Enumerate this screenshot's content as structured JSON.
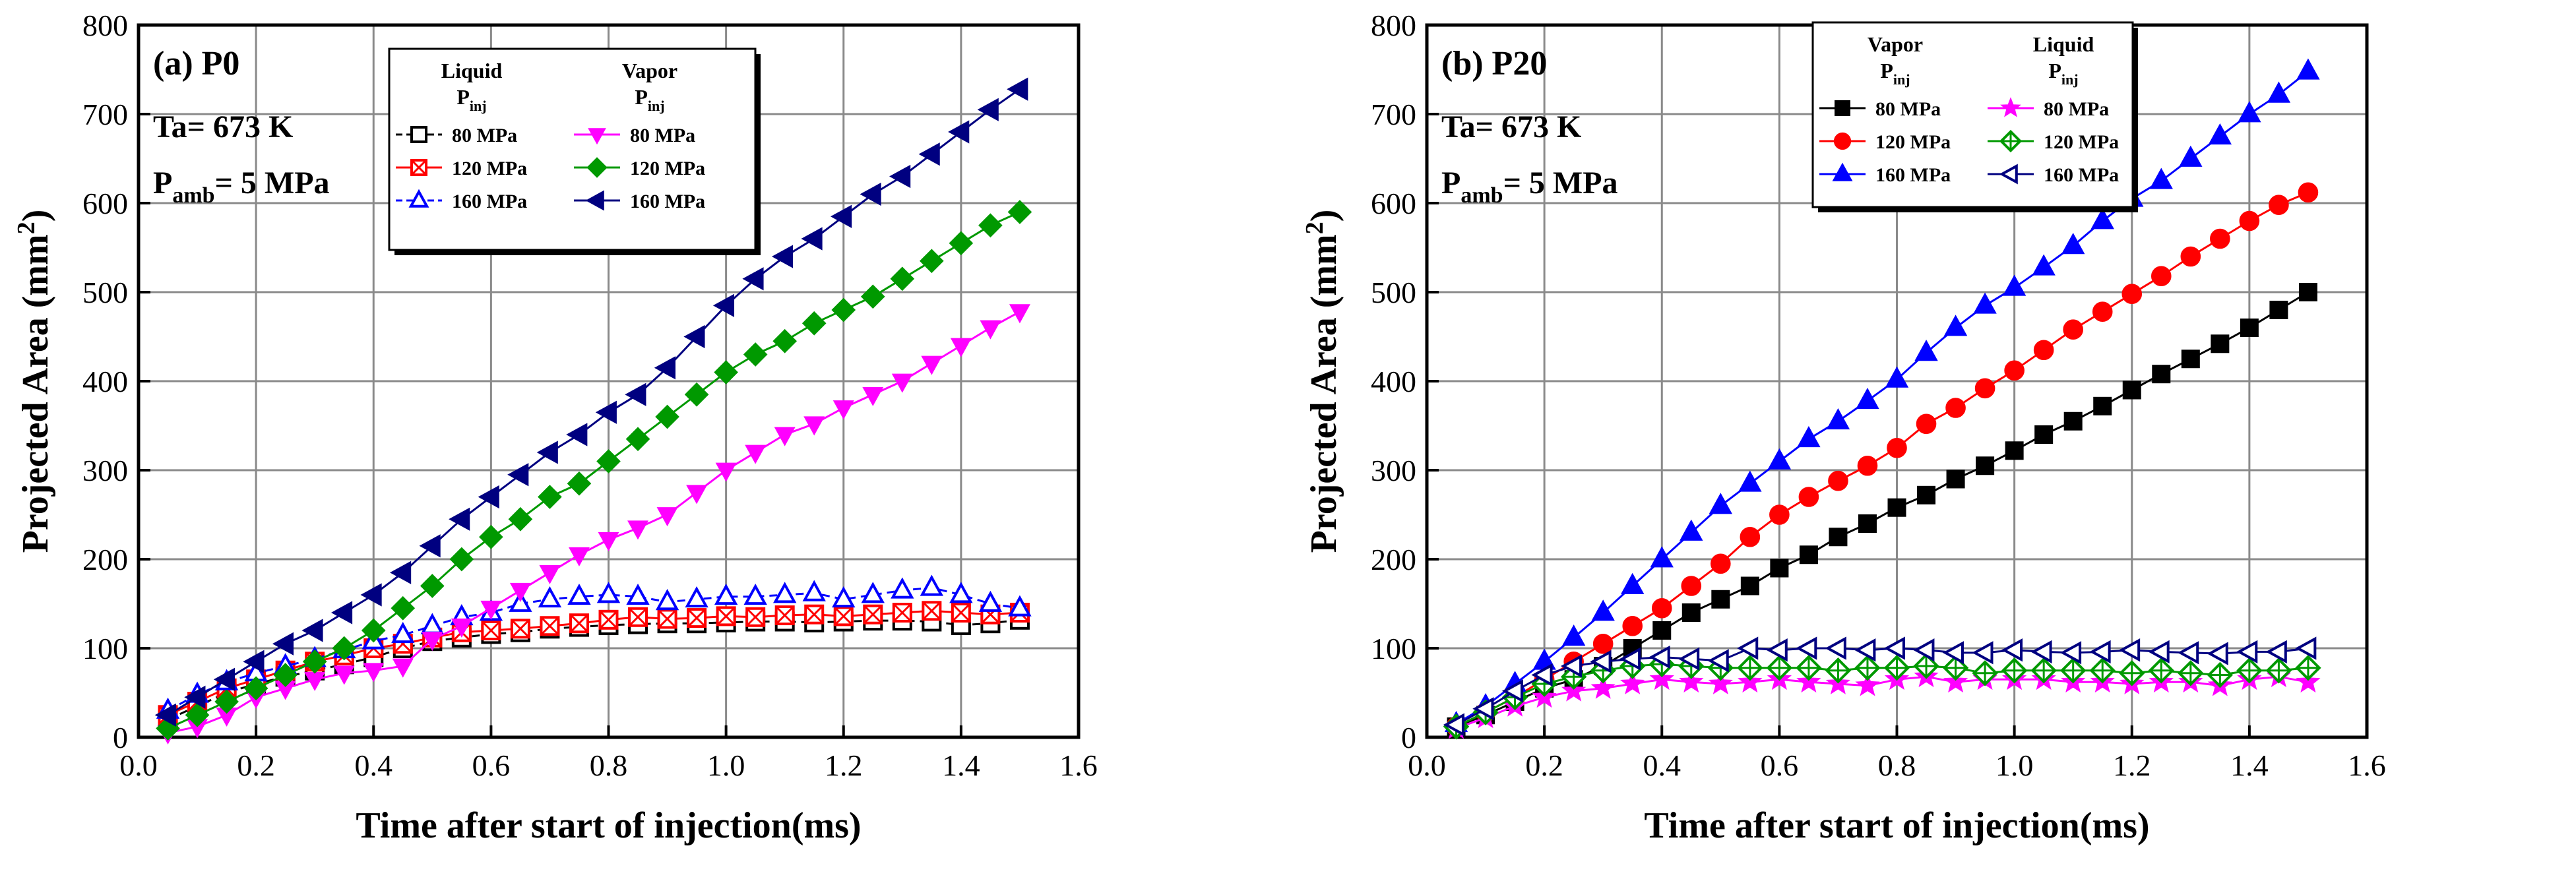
{
  "chart_data": [
    {
      "type": "line",
      "title": "(a) P0",
      "annotations": {
        "temperature": "Ta= 673 K",
        "pressure_main": "P",
        "pressure_sub": "amb",
        "pressure_rest": "= 5 MPa"
      },
      "xlabel": "Time after start of injection(ms)",
      "ylabel_main": "Projected Area (mm",
      "ylabel_sup": "2",
      "ylabel_end": ")",
      "xlim": [
        0.0,
        1.6
      ],
      "ylim": [
        0,
        800
      ],
      "xticks": [
        "0.0",
        "0.2",
        "0.4",
        "0.6",
        "0.8",
        "1.0",
        "1.2",
        "1.4",
        "1.6"
      ],
      "yticks": [
        "0",
        "100",
        "200",
        "300",
        "400",
        "500",
        "600",
        "700",
        "800"
      ],
      "grid": true,
      "legend_position": "top-center",
      "legend_groups": [
        {
          "header": "Liquid",
          "subheader_main": "P",
          "subheader_sub": "inj"
        },
        {
          "header": "Vapor",
          "subheader_main": "P",
          "subheader_sub": "inj"
        }
      ],
      "x": [
        0.05,
        0.1,
        0.15,
        0.2,
        0.25,
        0.3,
        0.35,
        0.4,
        0.45,
        0.5,
        0.55,
        0.6,
        0.65,
        0.7,
        0.75,
        0.8,
        0.85,
        0.9,
        0.95,
        1.0,
        1.05,
        1.1,
        1.15,
        1.2,
        1.25,
        1.3,
        1.35,
        1.4,
        1.45,
        1.5
      ],
      "series": [
        {
          "name": "80 MPa",
          "group": "Liquid",
          "color": "#000000",
          "marker": "square-open",
          "dashed": true,
          "values": [
            20,
            35,
            50,
            60,
            68,
            75,
            82,
            90,
            100,
            108,
            112,
            116,
            118,
            122,
            124,
            126,
            127,
            128,
            128,
            129,
            130,
            130,
            129,
            130,
            131,
            131,
            130,
            126,
            128,
            132
          ]
        },
        {
          "name": "120 MPa",
          "group": "Liquid",
          "color": "#ff0000",
          "marker": "square-x",
          "dashed": false,
          "values": [
            25,
            40,
            55,
            65,
            75,
            85,
            92,
            100,
            105,
            112,
            118,
            120,
            122,
            125,
            128,
            132,
            135,
            133,
            134,
            136,
            135,
            137,
            138,
            136,
            138,
            140,
            142,
            140,
            138,
            140
          ]
        },
        {
          "name": "160 MPa",
          "group": "Liquid",
          "color": "#0000ff",
          "marker": "triangle-up-open",
          "dashed": true,
          "values": [
            30,
            48,
            62,
            72,
            80,
            88,
            98,
            108,
            115,
            125,
            135,
            140,
            150,
            155,
            158,
            160,
            158,
            152,
            155,
            158,
            158,
            160,
            162,
            155,
            160,
            165,
            168,
            160,
            150,
            145
          ]
        },
        {
          "name": "80 MPa",
          "group": "Vapor",
          "color": "#ff00ff",
          "marker": "triangle-down-filled",
          "dashed": false,
          "values": [
            5,
            12,
            25,
            45,
            55,
            65,
            72,
            75,
            80,
            110,
            125,
            145,
            165,
            185,
            205,
            222,
            235,
            250,
            275,
            300,
            320,
            340,
            352,
            370,
            385,
            400,
            420,
            440,
            460,
            478
          ]
        },
        {
          "name": "120 MPa",
          "group": "Vapor",
          "color": "#009900",
          "marker": "diamond-filled",
          "dashed": false,
          "values": [
            10,
            25,
            40,
            55,
            70,
            85,
            100,
            120,
            145,
            170,
            200,
            225,
            245,
            270,
            285,
            310,
            335,
            360,
            385,
            410,
            430,
            445,
            465,
            480,
            495,
            515,
            535,
            555,
            575,
            590
          ]
        },
        {
          "name": "160 MPa",
          "group": "Vapor",
          "color": "#000080",
          "marker": "triangle-left-filled",
          "dashed": false,
          "values": [
            25,
            45,
            65,
            85,
            105,
            120,
            140,
            160,
            185,
            215,
            245,
            270,
            295,
            320,
            340,
            365,
            385,
            415,
            450,
            485,
            515,
            540,
            560,
            585,
            610,
            630,
            655,
            680,
            705,
            728
          ]
        }
      ]
    },
    {
      "type": "line",
      "title": "(b) P20",
      "annotations": {
        "temperature": "Ta= 673 K",
        "pressure_main": "P",
        "pressure_sub": "amb",
        "pressure_rest": "= 5 MPa"
      },
      "xlabel": "Time after start of injection(ms)",
      "ylabel_main": "Projected Area (mm",
      "ylabel_sup": "2",
      "ylabel_end": ")",
      "xlim": [
        0.0,
        1.6
      ],
      "ylim": [
        0,
        800
      ],
      "xticks": [
        "0.0",
        "0.2",
        "0.4",
        "0.6",
        "0.8",
        "1.0",
        "1.2",
        "1.4",
        "1.6"
      ],
      "yticks": [
        "0",
        "100",
        "200",
        "300",
        "400",
        "500",
        "600",
        "700",
        "800"
      ],
      "grid": true,
      "legend_position": "top-left",
      "legend_groups": [
        {
          "header": "Vapor",
          "subheader_main": "P",
          "subheader_sub": "inj"
        },
        {
          "header": "Liquid",
          "subheader_main": "P",
          "subheader_sub": "inj"
        }
      ],
      "x": [
        0.05,
        0.1,
        0.15,
        0.2,
        0.25,
        0.3,
        0.35,
        0.4,
        0.45,
        0.5,
        0.55,
        0.6,
        0.65,
        0.7,
        0.75,
        0.8,
        0.85,
        0.9,
        0.95,
        1.0,
        1.05,
        1.1,
        1.15,
        1.2,
        1.25,
        1.3,
        1.35,
        1.4,
        1.45,
        1.5
      ],
      "series": [
        {
          "name": "80 MPa",
          "group": "Vapor",
          "color": "#000000",
          "marker": "square-filled",
          "dashed": false,
          "values": [
            12,
            25,
            40,
            55,
            65,
            80,
            100,
            120,
            140,
            155,
            170,
            190,
            205,
            225,
            240,
            258,
            272,
            290,
            305,
            322,
            340,
            355,
            372,
            390,
            408,
            425,
            442,
            460,
            480,
            500
          ]
        },
        {
          "name": "120 MPa",
          "group": "Vapor",
          "color": "#ff0000",
          "marker": "circle-filled",
          "dashed": false,
          "values": [
            12,
            28,
            45,
            65,
            85,
            105,
            125,
            145,
            170,
            195,
            225,
            250,
            270,
            288,
            305,
            325,
            352,
            370,
            392,
            412,
            435,
            458,
            478,
            498,
            518,
            540,
            560,
            580,
            598,
            612
          ]
        },
        {
          "name": "160 MPa",
          "group": "Vapor",
          "color": "#0000ff",
          "marker": "triangle-up-filled",
          "dashed": false,
          "values": [
            15,
            35,
            60,
            85,
            112,
            140,
            170,
            200,
            230,
            260,
            285,
            310,
            335,
            355,
            378,
            402,
            432,
            460,
            485,
            505,
            528,
            552,
            580,
            605,
            625,
            650,
            675,
            700,
            722,
            748
          ]
        },
        {
          "name": "80 MPa",
          "group": "Liquid",
          "color": "#ff00ff",
          "marker": "star-filled",
          "dashed": false,
          "values": [
            10,
            22,
            35,
            45,
            52,
            55,
            60,
            65,
            62,
            60,
            62,
            65,
            62,
            60,
            58,
            65,
            68,
            62,
            65,
            65,
            65,
            62,
            62,
            60,
            62,
            62,
            58,
            65,
            68,
            62
          ]
        },
        {
          "name": "120 MPa",
          "group": "Liquid",
          "color": "#009900",
          "marker": "diamond-cross-open",
          "dashed": false,
          "values": [
            12,
            28,
            45,
            60,
            68,
            75,
            80,
            82,
            80,
            78,
            78,
            78,
            78,
            75,
            78,
            78,
            80,
            78,
            72,
            75,
            75,
            75,
            75,
            72,
            75,
            72,
            70,
            75,
            75,
            78
          ]
        },
        {
          "name": "160 MPa",
          "group": "Liquid",
          "color": "#000080",
          "marker": "triangle-left-open",
          "dashed": false,
          "values": [
            14,
            32,
            52,
            70,
            80,
            85,
            88,
            90,
            88,
            86,
            100,
            98,
            100,
            100,
            98,
            100,
            98,
            95,
            95,
            98,
            96,
            95,
            96,
            98,
            96,
            95,
            94,
            96,
            96,
            100
          ]
        }
      ]
    }
  ]
}
